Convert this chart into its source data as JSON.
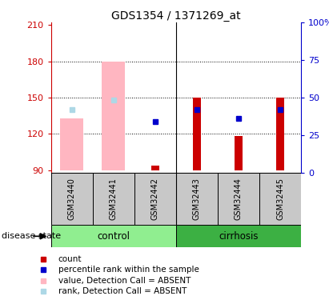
{
  "title": "GDS1354 / 1371269_at",
  "samples": [
    "GSM32440",
    "GSM32441",
    "GSM32442",
    "GSM32443",
    "GSM32444",
    "GSM32445"
  ],
  "ylim_left": [
    88,
    212
  ],
  "ylim_right": [
    0,
    100
  ],
  "yticks_left": [
    90,
    120,
    150,
    180,
    210
  ],
  "yticks_right": [
    0,
    25,
    50,
    75,
    100
  ],
  "base": 90,
  "absent_value_bars": {
    "GSM32440": 133,
    "GSM32441": 180
  },
  "absent_rank_dots": {
    "GSM32440": 140,
    "GSM32441": 148
  },
  "count_bars": {
    "GSM32442": 94,
    "GSM32443": 150,
    "GSM32444": 118,
    "GSM32445": 150
  },
  "percentile_dots": {
    "GSM32442": 130,
    "GSM32443": 140,
    "GSM32444": 133,
    "GSM32445": 140
  },
  "group_colors": {
    "control": "#90EE90",
    "cirrhosis": "#3CB043"
  },
  "absent_bar_color": "#FFB6C1",
  "absent_rank_color": "#ADD8E6",
  "count_bar_color": "#CC0000",
  "percentile_color": "#0000CC",
  "label_area_color": "#C8C8C8",
  "left_axis_color": "#CC0000",
  "right_axis_color": "#0000CC",
  "grid_yticks": [
    120,
    150,
    180
  ],
  "absent_bar_width": 0.55,
  "count_bar_width": 0.18,
  "dot_size_absent_rank": 5,
  "dot_size_percentile": 5,
  "legend_items": [
    {
      "color": "#CC0000",
      "label": "count"
    },
    {
      "color": "#0000CC",
      "label": "percentile rank within the sample"
    },
    {
      "color": "#FFB6C1",
      "label": "value, Detection Call = ABSENT"
    },
    {
      "color": "#ADD8E6",
      "label": "rank, Detection Call = ABSENT"
    }
  ]
}
